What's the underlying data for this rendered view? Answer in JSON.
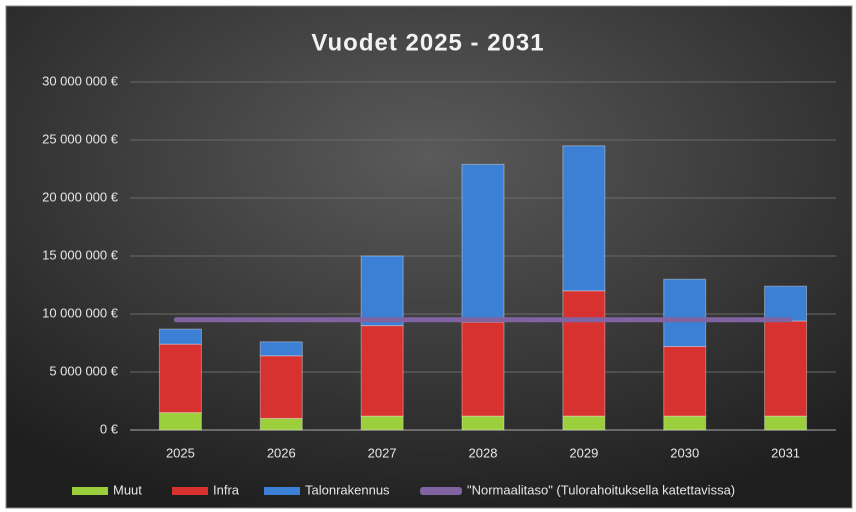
{
  "chart_data": {
    "type": "bar",
    "stacked": true,
    "title": "Vuodet 2025 - 2031",
    "categories": [
      "2025",
      "2026",
      "2027",
      "2028",
      "2029",
      "2030",
      "2031"
    ],
    "series": [
      {
        "name": "Muut",
        "color": "#9ccf3c",
        "values": [
          1500000,
          1000000,
          1200000,
          1200000,
          1200000,
          1200000,
          1200000
        ]
      },
      {
        "name": "Infra",
        "color": "#d73230",
        "values": [
          5900000,
          5400000,
          7800000,
          8100000,
          10800000,
          6000000,
          8200000
        ]
      },
      {
        "name": "Talonrakennus",
        "color": "#3b80d4",
        "values": [
          1300000,
          1200000,
          6000000,
          13600000,
          12500000,
          5800000,
          3000000
        ]
      },
      {
        "name": "\"Normaalitaso\" (Tulorahoituksella katettavissa)",
        "color": "#8064a2",
        "type": "line",
        "values": [
          9500000,
          9500000,
          9500000,
          9500000,
          9500000,
          9500000,
          9500000
        ]
      }
    ],
    "ylim": [
      0,
      30000000
    ],
    "yticks": [
      {
        "value": 0,
        "label": "0 €"
      },
      {
        "value": 5000000,
        "label": "5 000 000 €"
      },
      {
        "value": 10000000,
        "label": "10 000 000 €"
      },
      {
        "value": 15000000,
        "label": "15 000 000 €"
      },
      {
        "value": 20000000,
        "label": "20 000 000 €"
      },
      {
        "value": 25000000,
        "label": "25 000 000 €"
      },
      {
        "value": 30000000,
        "label": "30 000 000 €"
      }
    ],
    "grid": true,
    "legend": "bottom"
  }
}
